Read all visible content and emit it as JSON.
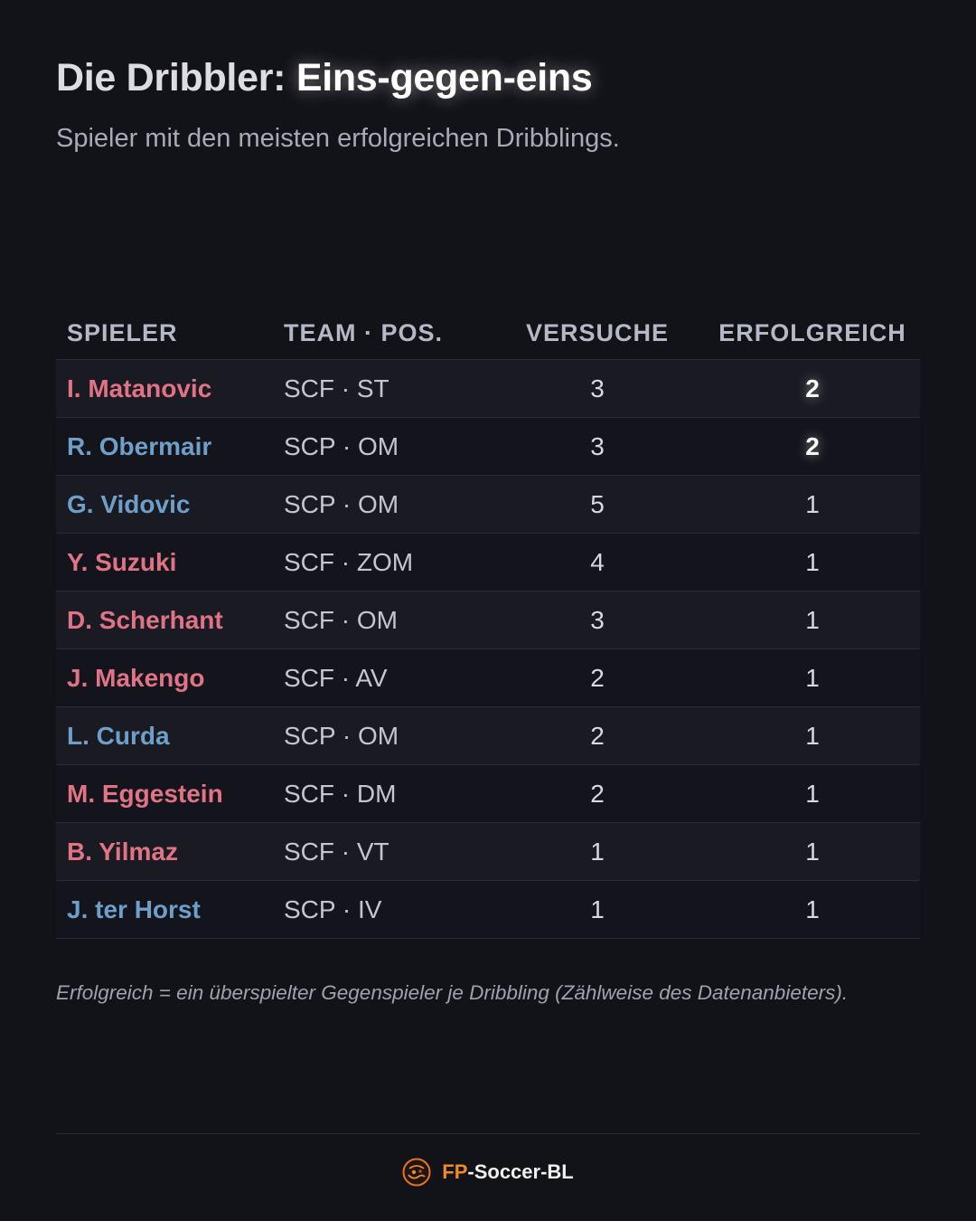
{
  "header": {
    "title_part1": "Die Dribbler:",
    "title_part2": "Eins-gegen-eins",
    "subtitle": "Spieler mit den meisten erfolgreichen Dribblings."
  },
  "colors": {
    "SCF": "#e07486",
    "SCP": "#6e9fc8",
    "brand_accent": "#f08a24",
    "background": "#121219"
  },
  "chart_data": {
    "type": "table",
    "columns": [
      "SPIELER",
      "TEAM · POS.",
      "VERSUCHE",
      "ERFOLGREICH"
    ],
    "rows": [
      {
        "player": "I. Matanovic",
        "team": "SCF",
        "pos": "ST",
        "team_pos": "SCF · ST",
        "attempts": 3,
        "successful": 2,
        "highlight": true
      },
      {
        "player": "R. Obermair",
        "team": "SCP",
        "pos": "OM",
        "team_pos": "SCP · OM",
        "attempts": 3,
        "successful": 2,
        "highlight": true
      },
      {
        "player": "G. Vidovic",
        "team": "SCP",
        "pos": "OM",
        "team_pos": "SCP · OM",
        "attempts": 5,
        "successful": 1,
        "highlight": false
      },
      {
        "player": "Y. Suzuki",
        "team": "SCF",
        "pos": "ZOM",
        "team_pos": "SCF · ZOM",
        "attempts": 4,
        "successful": 1,
        "highlight": false
      },
      {
        "player": "D. Scherhant",
        "team": "SCF",
        "pos": "OM",
        "team_pos": "SCF · OM",
        "attempts": 3,
        "successful": 1,
        "highlight": false
      },
      {
        "player": "J. Makengo",
        "team": "SCF",
        "pos": "AV",
        "team_pos": "SCF · AV",
        "attempts": 2,
        "successful": 1,
        "highlight": false
      },
      {
        "player": "L. Curda",
        "team": "SCP",
        "pos": "OM",
        "team_pos": "SCP · OM",
        "attempts": 2,
        "successful": 1,
        "highlight": false
      },
      {
        "player": "M. Eggestein",
        "team": "SCF",
        "pos": "DM",
        "team_pos": "SCF · DM",
        "attempts": 2,
        "successful": 1,
        "highlight": false
      },
      {
        "player": "B. Yilmaz",
        "team": "SCF",
        "pos": "VT",
        "team_pos": "SCF · VT",
        "attempts": 1,
        "successful": 1,
        "highlight": false
      },
      {
        "player": "J. ter Horst",
        "team": "SCP",
        "pos": "IV",
        "team_pos": "SCP · IV",
        "attempts": 1,
        "successful": 1,
        "highlight": false
      }
    ]
  },
  "footnote": "Erfolgreich = ein überspielter Gegenspieler je Dribbling (Zählweise des Datenanbieters).",
  "footer": {
    "brand_accent": "FP",
    "brand_rest": "-Soccer-BL",
    "logo_icon": "soccer-logo-icon"
  }
}
